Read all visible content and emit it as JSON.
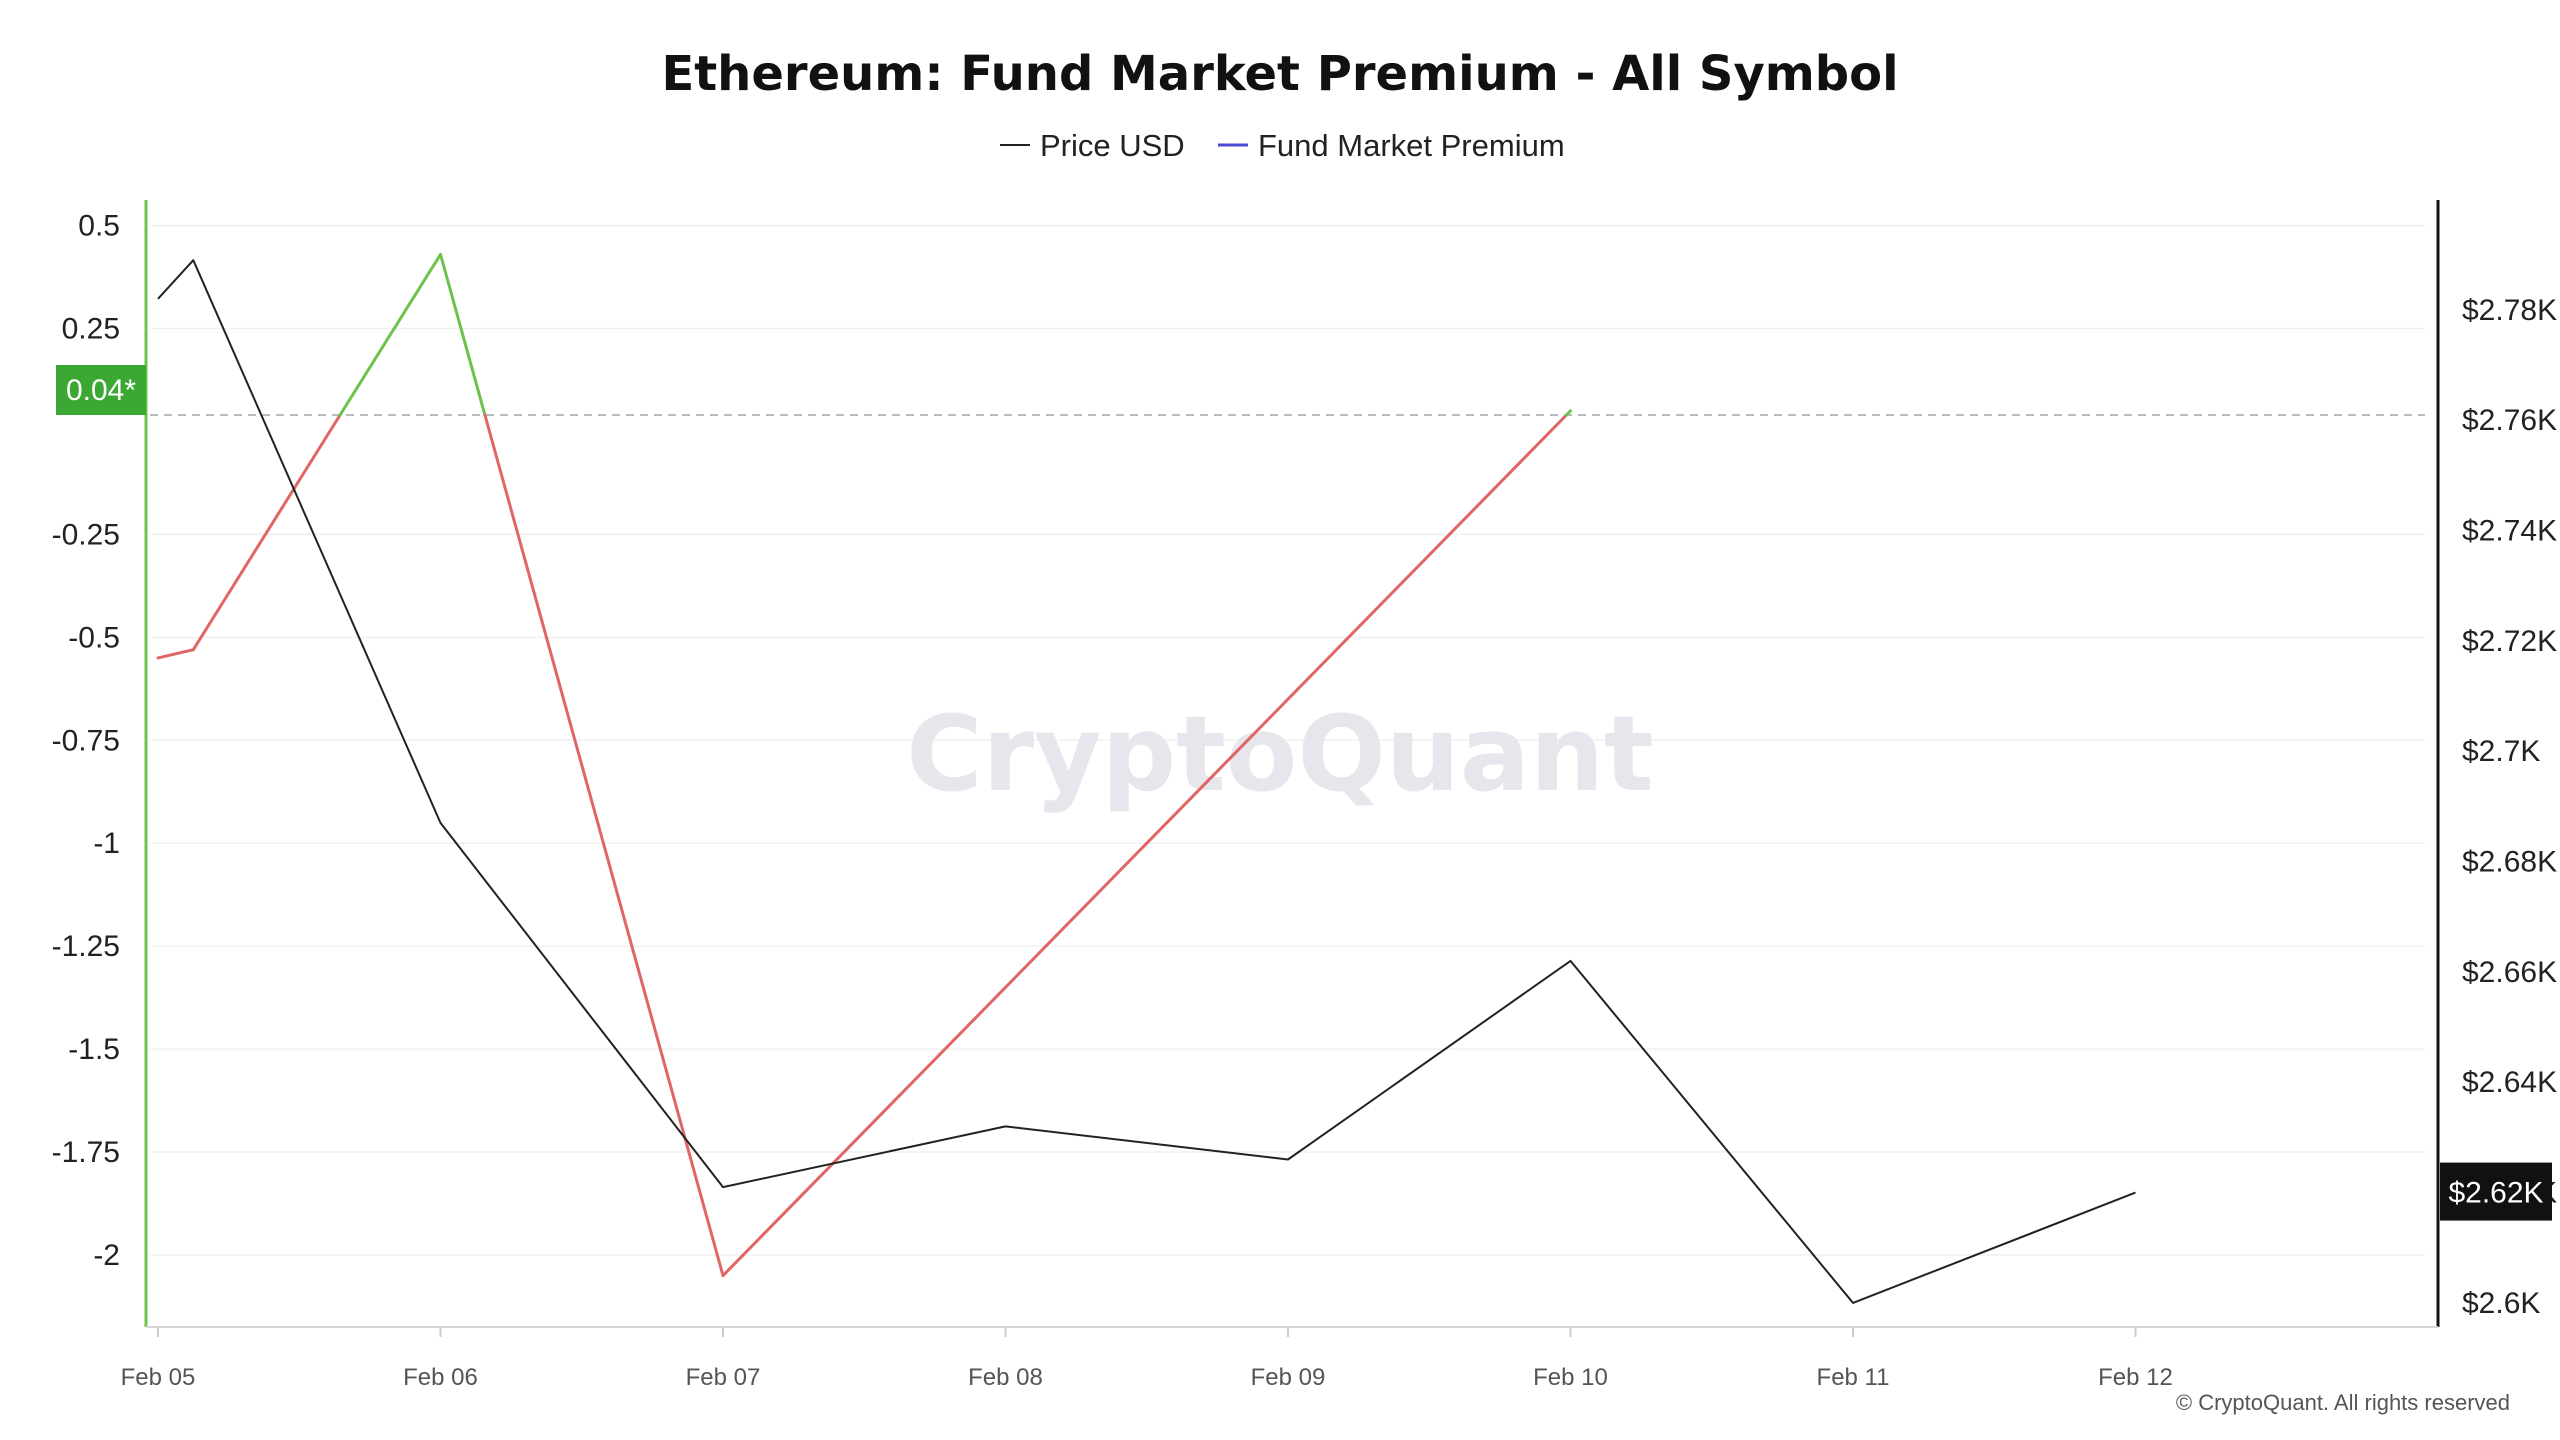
{
  "chart_data": {
    "type": "line",
    "title": "Ethereum: Fund Market Premium - All Symbol",
    "x": [
      "2025-02-05",
      "2025-02-05T03",
      "2025-02-06",
      "2025-02-07",
      "2025-02-08",
      "2025-02-09",
      "2025-02-10",
      "2025-02-11",
      "2025-02-12"
    ],
    "x_tick_labels": [
      "Feb 05",
      "Feb 06",
      "Feb 07",
      "Feb 08",
      "Feb 09",
      "Feb 10",
      "Feb 11",
      "Feb 12"
    ],
    "series": [
      {
        "name": "Price USD",
        "axis": "right",
        "values": [
          2782,
          2789,
          2687,
          2621,
          2632,
          2626,
          2662,
          2600,
          2620
        ]
      },
      {
        "name": "Fund Market Premium",
        "axis": "left",
        "values": [
          -0.55,
          -0.53,
          0.43,
          -2.05,
          null,
          null,
          0.05,
          null,
          null
        ],
        "positive_color": "#6cc24a",
        "negative_color": "#e06666"
      }
    ],
    "left_axis": {
      "ylim": [
        -2.17,
        0.55
      ],
      "ticks": [
        "0.5",
        "0.25",
        "-0.25",
        "-0.5",
        "-0.75",
        "-1",
        "-1.25",
        "-1.5",
        "-1.75",
        "-2"
      ]
    },
    "right_axis": {
      "ylim": [
        2596,
        2799
      ],
      "ticks": [
        "$2.78K",
        "$2.76K",
        "$2.74K",
        "$2.72K",
        "$2.7K",
        "$2.68K",
        "$2.66K",
        "$2.64K",
        "$2.62K",
        "$2.6K"
      ]
    },
    "current_premium_label": "0.04*",
    "current_price_label": "$2.62K",
    "legend": {
      "position": "top-center",
      "items": [
        "Price USD",
        "Fund Market Premium"
      ]
    },
    "colors": {
      "price": "#222222",
      "premium_legend": "#4b4bd6",
      "badge_green": "#3aa832",
      "badge_black": "#111111"
    },
    "grid": true
  },
  "watermark": "CryptoQuant",
  "copyright": "© CryptoQuant. All rights reserved"
}
